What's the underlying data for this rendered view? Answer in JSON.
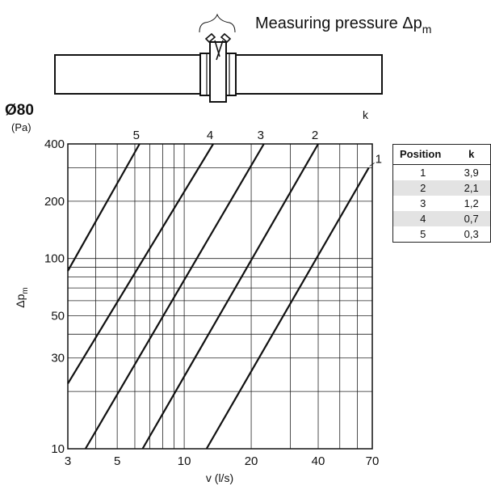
{
  "header": {
    "title": "Measuring pressure Δp",
    "title_sub": "m"
  },
  "chart_data": {
    "type": "line",
    "diameter_label": "Ø80",
    "k_label": "k",
    "y_unit": "(Pa)",
    "ylabel": "Δp",
    "ylabel_sub": "m",
    "xlabel": "v (l/s)",
    "x_scale": "log",
    "y_scale": "log",
    "xlim": [
      3,
      70
    ],
    "ylim": [
      10,
      400
    ],
    "x_ticks": [
      3,
      5,
      10,
      20,
      40,
      70
    ],
    "y_ticks": [
      10,
      30,
      50,
      100,
      200,
      400
    ],
    "x_grid": [
      3,
      4,
      5,
      6,
      7,
      8,
      9,
      10,
      20,
      30,
      40,
      50,
      60,
      70
    ],
    "y_grid": [
      10,
      20,
      30,
      40,
      50,
      60,
      70,
      80,
      90,
      100,
      200,
      300,
      400
    ],
    "grid": true,
    "series": [
      {
        "name": "1",
        "k": 3.9,
        "points": [
          [
            12.6,
            10
          ],
          [
            67.5,
            300
          ]
        ]
      },
      {
        "name": "2",
        "k": 2.1,
        "points": [
          [
            6.5,
            10
          ],
          [
            40,
            400
          ]
        ]
      },
      {
        "name": "3",
        "k": 1.2,
        "points": [
          [
            3.6,
            10
          ],
          [
            22.8,
            400
          ]
        ]
      },
      {
        "name": "4",
        "k": 0.7,
        "points": [
          [
            3,
            22
          ],
          [
            13.5,
            400
          ]
        ]
      },
      {
        "name": "5",
        "k": 0.3,
        "points": [
          [
            3,
            86
          ],
          [
            6.3,
            400
          ]
        ]
      }
    ]
  },
  "k_table": {
    "headers": [
      "Position",
      "k"
    ],
    "rows": [
      {
        "position": "1",
        "k": "3,9"
      },
      {
        "position": "2",
        "k": "2,1"
      },
      {
        "position": "3",
        "k": "1,2"
      },
      {
        "position": "4",
        "k": "0,7"
      },
      {
        "position": "5",
        "k": "0,3"
      }
    ]
  }
}
